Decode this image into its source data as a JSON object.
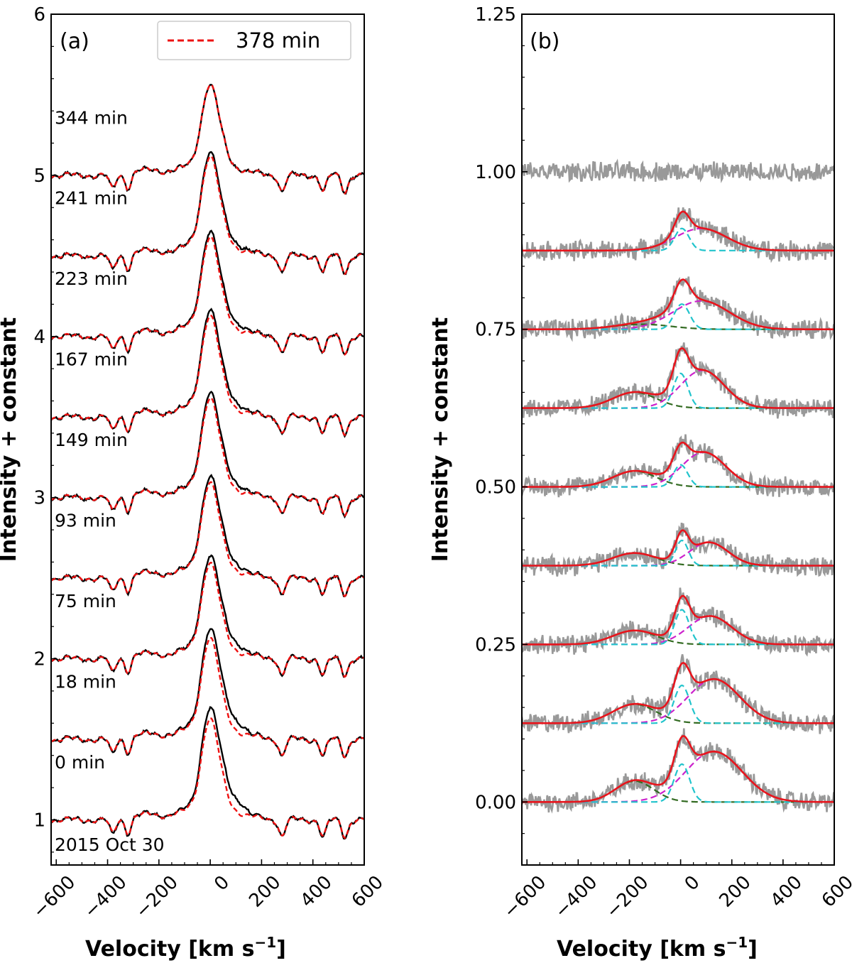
{
  "chart_data": [
    {
      "type": "line",
      "panel_label": "(a)",
      "title": "",
      "xlabel": "Velocity [km s",
      "xlabel_exponent": "−1",
      "xlabel_close": "]",
      "ylabel": "Intensity + constant",
      "xlim": [
        -620,
        600
      ],
      "ylim": [
        0.72,
        6.0
      ],
      "x_ticks": [
        -600,
        -400,
        -200,
        0,
        200,
        400,
        600
      ],
      "x_tick_labels": [
        "−600",
        "−400",
        "−200",
        "0",
        "200",
        "400",
        "600"
      ],
      "y_ticks": [
        1,
        2,
        3,
        4,
        5,
        6
      ],
      "y_tick_labels": [
        "1",
        "2",
        "3",
        "4",
        "5",
        "6"
      ],
      "legend": {
        "position": "top-right",
        "label": "378 min",
        "style": "dashed",
        "color": "#ee1111"
      },
      "date_label": "2015 Oct 30",
      "observed_color": "#000000",
      "reference_color": "#ee1111",
      "spectra": [
        {
          "time_label": "0 min",
          "baseline": 1.0,
          "peak": 0.56,
          "excess": 1.0
        },
        {
          "time_label": "18 min",
          "baseline": 1.5,
          "peak": 0.56,
          "excess": 0.85
        },
        {
          "time_label": "75 min",
          "baseline": 2.0,
          "peak": 0.53,
          "excess": 0.65
        },
        {
          "time_label": "93 min",
          "baseline": 2.5,
          "peak": 0.53,
          "excess": 0.55
        },
        {
          "time_label": "149 min",
          "baseline": 3.0,
          "peak": 0.55,
          "excess": 0.5
        },
        {
          "time_label": "167 min",
          "baseline": 3.5,
          "peak": 0.56,
          "excess": 0.5
        },
        {
          "time_label": "223 min",
          "baseline": 4.0,
          "peak": 0.55,
          "excess": 0.5
        },
        {
          "time_label": "241 min",
          "baseline": 4.5,
          "peak": 0.55,
          "excess": 0.35
        },
        {
          "time_label": "344 min",
          "baseline": 5.0,
          "peak": 0.5,
          "excess": 0.0
        }
      ],
      "absorption_lines_kms": [
        -380,
        -320,
        280,
        440,
        525
      ]
    },
    {
      "type": "line",
      "panel_label": "(b)",
      "title": "",
      "xlabel": "Velocity [km s",
      "xlabel_exponent": "−1",
      "xlabel_close": "]",
      "ylabel": "Intensity + constant",
      "xlim": [
        -620,
        600
      ],
      "ylim": [
        -0.1,
        1.25
      ],
      "x_ticks": [
        -600,
        -400,
        -200,
        0,
        200,
        400,
        600
      ],
      "x_tick_labels": [
        "−600",
        "−400",
        "−200",
        "0",
        "200",
        "400",
        "600"
      ],
      "y_ticks": [
        0.0,
        0.25,
        0.5,
        0.75,
        1.0,
        1.25
      ],
      "y_tick_labels": [
        "0.00",
        "0.25",
        "0.50",
        "0.75",
        "1.00",
        "1.25"
      ],
      "colors": {
        "data": "#999999",
        "fit": "#e8141c",
        "narrow": "#22c4cc",
        "broad_red": "#cc22cc",
        "broad_blue": "#336b22"
      },
      "components_note": "narrow Gaussian near 0 km/s (cyan), broad red-shifted Gaussian (magenta), blue-shifted Gaussian (green), total fit (red)",
      "spectra": [
        {
          "baseline": 0.0,
          "narrow": {
            "amp": 0.06,
            "center": 5,
            "sigma": 30
          },
          "red": {
            "amp": 0.08,
            "center": 130,
            "sigma": 110
          },
          "blue": {
            "amp": 0.033,
            "center": -180,
            "sigma": 75
          }
        },
        {
          "baseline": 0.125,
          "narrow": {
            "amp": 0.06,
            "center": 5,
            "sigma": 30
          },
          "red": {
            "amp": 0.07,
            "center": 130,
            "sigma": 100
          },
          "blue": {
            "amp": 0.03,
            "center": -180,
            "sigma": 85
          }
        },
        {
          "baseline": 0.25,
          "narrow": {
            "amp": 0.055,
            "center": 5,
            "sigma": 28
          },
          "red": {
            "amp": 0.045,
            "center": 115,
            "sigma": 85
          },
          "blue": {
            "amp": 0.022,
            "center": -180,
            "sigma": 85
          }
        },
        {
          "baseline": 0.375,
          "narrow": {
            "amp": 0.04,
            "center": 5,
            "sigma": 25
          },
          "red": {
            "amp": 0.037,
            "center": 110,
            "sigma": 75
          },
          "blue": {
            "amp": 0.02,
            "center": -180,
            "sigma": 85
          }
        },
        {
          "baseline": 0.5,
          "narrow": {
            "amp": 0.035,
            "center": 0,
            "sigma": 28
          },
          "red": {
            "amp": 0.055,
            "center": 90,
            "sigma": 85
          },
          "blue": {
            "amp": 0.025,
            "center": -180,
            "sigma": 85
          }
        },
        {
          "baseline": 0.625,
          "narrow": {
            "amp": 0.055,
            "center": 0,
            "sigma": 28
          },
          "red": {
            "amp": 0.06,
            "center": 85,
            "sigma": 85
          },
          "blue": {
            "amp": 0.025,
            "center": -180,
            "sigma": 85
          }
        },
        {
          "baseline": 0.75,
          "narrow": {
            "amp": 0.04,
            "center": 5,
            "sigma": 30
          },
          "red": {
            "amp": 0.045,
            "center": 80,
            "sigma": 110
          },
          "blue": {
            "amp": 0.008,
            "center": -150,
            "sigma": 110
          }
        },
        {
          "baseline": 0.875,
          "narrow": {
            "amp": 0.035,
            "center": 5,
            "sigma": 28
          },
          "red": {
            "amp": 0.035,
            "center": 80,
            "sigma": 100
          },
          "blue": null
        },
        {
          "baseline": 1.0,
          "narrow": null,
          "red": null,
          "blue": null
        }
      ]
    }
  ]
}
